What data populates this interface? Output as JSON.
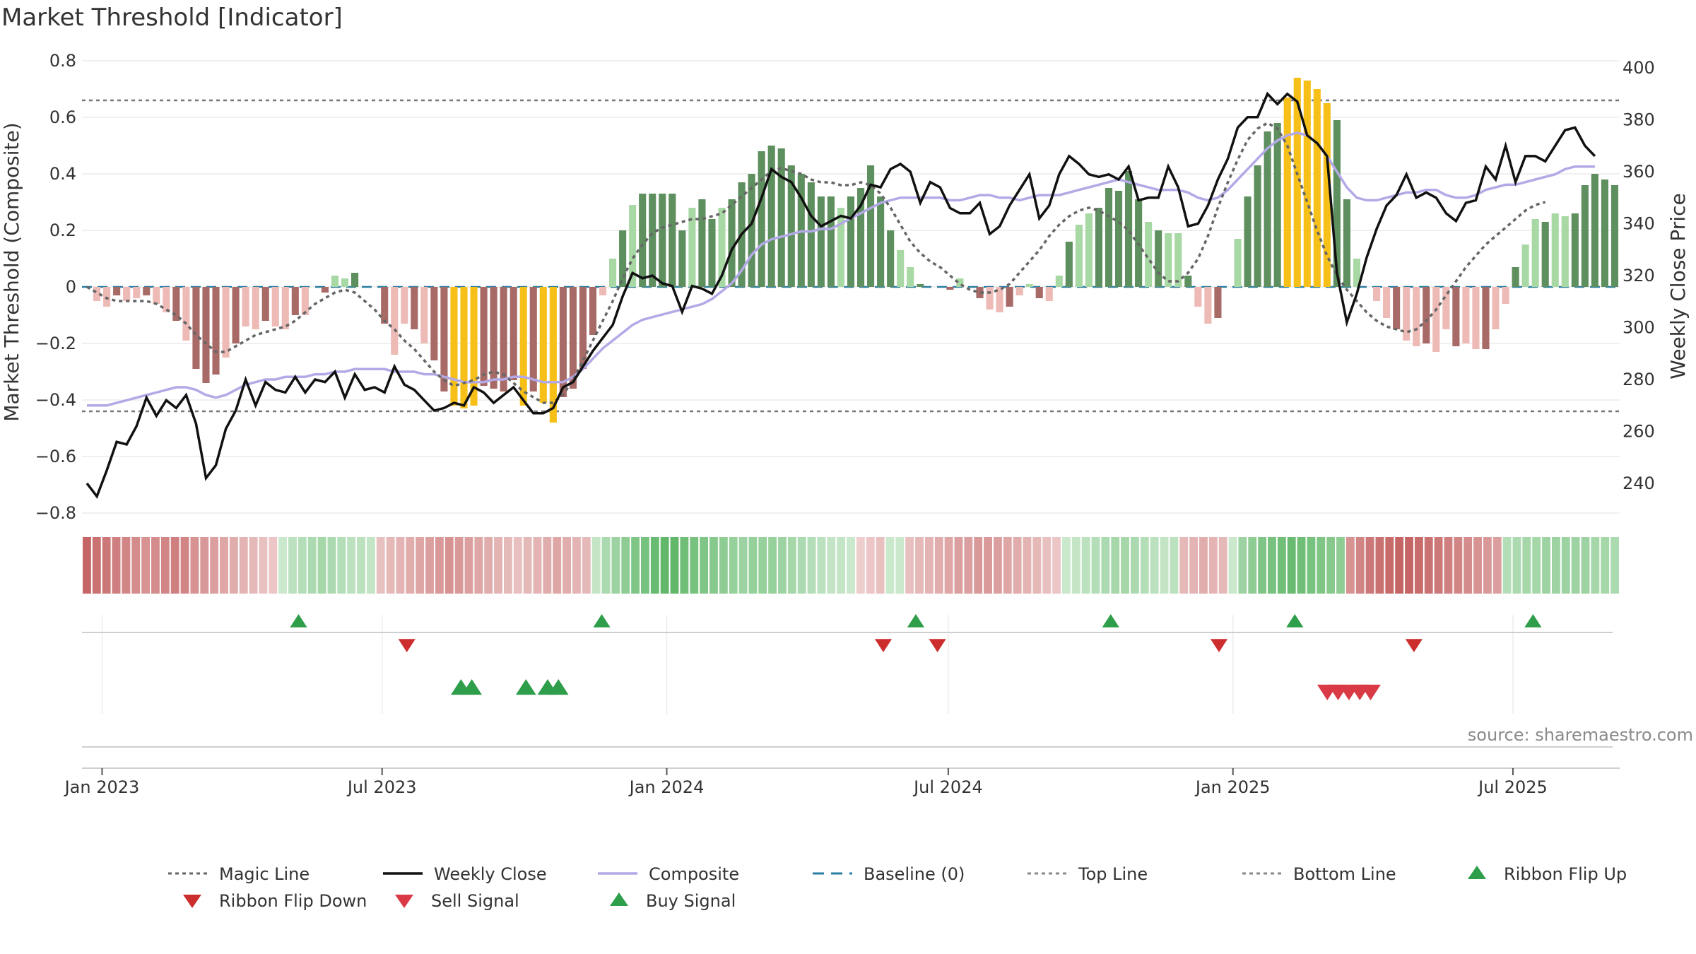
{
  "title": "Market Threshold [Indicator]",
  "source": "source: sharemaestro.com",
  "colors": {
    "close": "#111111",
    "composite": "#b3a9e6",
    "magic": "#666666",
    "baseline": "#2a7da0",
    "threshold": "#777777",
    "buy": "#2e9e4a",
    "sell": "#d93a45",
    "flip_up": "#2e9e4a",
    "flip_down": "#cc2e2e",
    "strong_pos": "#5e8f5e",
    "weak_pos": "#a8d8a4",
    "strong_neg": "#a86a66",
    "weak_neg": "#edbab6",
    "extreme": "#f6c018"
  },
  "legend": [
    {
      "label": "Magic Line",
      "symbol": "dotted",
      "color": "#666666"
    },
    {
      "label": "Weekly Close",
      "symbol": "line",
      "color": "#111111"
    },
    {
      "label": "Composite",
      "symbol": "line",
      "color": "#b3a9e6"
    },
    {
      "label": "Baseline (0)",
      "symbol": "dashed",
      "color": "#2a7da0"
    },
    {
      "label": "Top Line",
      "symbol": "dotted",
      "color": "#888888"
    },
    {
      "label": "Bottom Line",
      "symbol": "dotted",
      "color": "#888888"
    },
    {
      "label": "Ribbon Flip Up",
      "symbol": "tri-up",
      "color": "#2e9e4a"
    },
    {
      "label": "Ribbon Flip Down",
      "symbol": "tri-down",
      "color": "#cc2e2e"
    },
    {
      "label": "Sell Signal",
      "symbol": "tri-down",
      "color": "#d93a45"
    },
    {
      "label": "Buy Signal",
      "symbol": "tri-up",
      "color": "#2e9e4a"
    }
  ],
  "chart_data": {
    "type": "bar",
    "title": "Market Threshold [Indicator]",
    "ylabel": "Market Threshold (Composite)",
    "y2label": "Weekly Close Price",
    "ylim": [
      -0.8,
      0.8
    ],
    "y2lim": [
      230,
      400
    ],
    "y_ticks": [
      0.8,
      0.6,
      0.4,
      0.2,
      0,
      -0.2,
      -0.4,
      -0.6,
      -0.8
    ],
    "y_tick_labels": [
      "0.8",
      "0.6",
      "0.4",
      "0.2",
      "0",
      "−0.2",
      "−0.4",
      "−0.6",
      "−0.8"
    ],
    "y2_ticks": [
      400,
      380,
      360,
      340,
      320,
      300,
      280,
      260,
      240
    ],
    "y2_tick_labels": [
      "400",
      "380",
      "360",
      "340",
      "320",
      "300",
      "280",
      "260",
      "240"
    ],
    "x_range": [
      "2022-12-19",
      "2025-09-08"
    ],
    "x_ticks": [
      "2023-01-01",
      "2023-07-01",
      "2024-01-01",
      "2024-07-01",
      "2025-01-01",
      "2025-07-01"
    ],
    "x_tick_labels": [
      "Jan 2023",
      "Jul 2023",
      "Jan 2024",
      "Jul 2024",
      "Jan 2025",
      "Jul 2025"
    ],
    "top_line": 0.66,
    "bottom_line": -0.44,
    "baseline": 0,
    "grid": true,
    "legend_position": "bottom",
    "series": [
      {
        "name": "Composite",
        "type": "bar+line",
        "start": "2022-12-19",
        "interval_days": 7,
        "values": [
          0,
          -0.05,
          -0.07,
          -0.03,
          -0.05,
          -0.04,
          -0.03,
          -0.06,
          -0.09,
          -0.12,
          -0.19,
          -0.29,
          -0.34,
          -0.31,
          -0.25,
          -0.2,
          -0.14,
          -0.15,
          -0.12,
          -0.14,
          -0.15,
          -0.1,
          -0.1,
          0,
          -0.02,
          0.04,
          0.03,
          0.05,
          0,
          0,
          -0.13,
          -0.24,
          -0.13,
          -0.15,
          -0.2,
          -0.26,
          -0.37,
          -0.42,
          -0.43,
          -0.42,
          -0.35,
          -0.36,
          -0.37,
          -0.33,
          -0.42,
          -0.37,
          -0.41,
          -0.48,
          -0.39,
          -0.36,
          -0.29,
          -0.17,
          -0.03,
          0.1,
          0.2,
          0.29,
          0.33,
          0.33,
          0.33,
          0.33,
          0.2,
          0.28,
          0.31,
          0.24,
          0.28,
          0.31,
          0.37,
          0.4,
          0.48,
          0.5,
          0.49,
          0.43,
          0.4,
          0.37,
          0.32,
          0.32,
          0.28,
          0.32,
          0.35,
          0.43,
          0.32,
          0.2,
          0.13,
          0.07,
          0.01,
          0,
          0,
          -0.01,
          0.03,
          0,
          -0.04,
          -0.08,
          -0.09,
          -0.07,
          -0.03,
          0.01,
          -0.04,
          -0.05,
          0.04,
          0.16,
          0.22,
          0.26,
          0.28,
          0.35,
          0.34,
          0.41,
          0.31,
          0.23,
          0.2,
          0.19,
          0.19,
          0.04,
          -0.07,
          -0.13,
          -0.11,
          0,
          0.17,
          0.32,
          0.43,
          0.55,
          0.58,
          0.67,
          0.74,
          0.73,
          0.7,
          0.65,
          0.59,
          0.31,
          0.1,
          0,
          -0.05,
          -0.11,
          -0.15,
          -0.19,
          -0.21,
          -0.2,
          -0.23,
          -0.15,
          -0.21,
          -0.2,
          -0.22,
          -0.22,
          -0.15,
          -0.06,
          0.07,
          0.15,
          0.24,
          0.23,
          0.26,
          0.25,
          0.26,
          0.36,
          0.4,
          0.38,
          0.36
        ]
      },
      {
        "name": "Weekly Close",
        "start": "2022-12-19",
        "interval_days": 7,
        "values": [
          240,
          235,
          245,
          256,
          255,
          262,
          273,
          266,
          272,
          269,
          274,
          263,
          242,
          247,
          261,
          268,
          280,
          270,
          279,
          276,
          275,
          281,
          275,
          280,
          279,
          283,
          273,
          282,
          276,
          277,
          275,
          285,
          278,
          276,
          272,
          268,
          269,
          271,
          270,
          277,
          275,
          271,
          274,
          277,
          272,
          267,
          267,
          269,
          277,
          279,
          285,
          291,
          296,
          301,
          312,
          321,
          319,
          320,
          317,
          316,
          306,
          316,
          315,
          313,
          320,
          330,
          336,
          340,
          350,
          361,
          358,
          356,
          350,
          343,
          339,
          341,
          343,
          342,
          347,
          355,
          354,
          361,
          363,
          360,
          348,
          356,
          354,
          346,
          344,
          344,
          348,
          336,
          339,
          347,
          353,
          359,
          342,
          347,
          359,
          366,
          363,
          359,
          358,
          359,
          357,
          362,
          349,
          350,
          350,
          362,
          354,
          339,
          340,
          347,
          357,
          365,
          377,
          381,
          381,
          390,
          386,
          390,
          387,
          374,
          371,
          366,
          321,
          302,
          313,
          327,
          338,
          347,
          351,
          359,
          350,
          352,
          350,
          344,
          341,
          348,
          349,
          362,
          357,
          370,
          356,
          366,
          366,
          364,
          370,
          376,
          377,
          370,
          366
        ]
      },
      {
        "name": "Magic Line",
        "start": "2022-12-19",
        "interval_days": 7,
        "values": [
          0,
          -0.02,
          -0.04,
          -0.05,
          -0.05,
          -0.05,
          -0.05,
          -0.06,
          -0.08,
          -0.1,
          -0.13,
          -0.17,
          -0.2,
          -0.23,
          -0.23,
          -0.21,
          -0.19,
          -0.17,
          -0.16,
          -0.15,
          -0.14,
          -0.12,
          -0.09,
          -0.06,
          -0.04,
          -0.02,
          -0.01,
          -0.02,
          -0.05,
          -0.08,
          -0.12,
          -0.15,
          -0.19,
          -0.22,
          -0.26,
          -0.3,
          -0.33,
          -0.35,
          -0.34,
          -0.33,
          -0.31,
          -0.3,
          -0.31,
          -0.34,
          -0.37,
          -0.39,
          -0.41,
          -0.41,
          -0.38,
          -0.33,
          -0.26,
          -0.19,
          -0.12,
          -0.05,
          0.03,
          0.1,
          0.15,
          0.19,
          0.21,
          0.22,
          0.23,
          0.24,
          0.24,
          0.25,
          0.26,
          0.29,
          0.32,
          0.35,
          0.38,
          0.41,
          0.42,
          0.41,
          0.4,
          0.38,
          0.37,
          0.37,
          0.36,
          0.36,
          0.37,
          0.36,
          0.33,
          0.28,
          0.22,
          0.16,
          0.12,
          0.09,
          0.07,
          0.04,
          0.01,
          -0.01,
          -0.02,
          -0.02,
          -0.01,
          0.01,
          0.05,
          0.09,
          0.13,
          0.18,
          0.22,
          0.25,
          0.27,
          0.28,
          0.27,
          0.25,
          0.23,
          0.2,
          0.15,
          0.1,
          0.05,
          0.02,
          0.02,
          0.05,
          0.1,
          0.18,
          0.28,
          0.37,
          0.45,
          0.52,
          0.56,
          0.58,
          0.56,
          0.5,
          0.4,
          0.3,
          0.2,
          0.11,
          0.04,
          -0.01,
          -0.05,
          -0.09,
          -0.12,
          -0.14,
          -0.15,
          -0.16,
          -0.15,
          -0.12,
          -0.08,
          -0.03,
          0.02,
          0.07,
          0.11,
          0.15,
          0.18,
          0.21,
          0.24,
          0.27,
          0.29,
          0.3
        ]
      },
      {
        "name": "Composite Line",
        "start": "2022-12-19",
        "interval_days": 7,
        "values": [
          270,
          270,
          270,
          271,
          272,
          273,
          274,
          275,
          276,
          277,
          277,
          276,
          274,
          273,
          274,
          276,
          278,
          279,
          280,
          280,
          281,
          281,
          281,
          282,
          282,
          283,
          283,
          284,
          284,
          284,
          284,
          283,
          283,
          283,
          282,
          282,
          281,
          280,
          279,
          279,
          279,
          280,
          280,
          281,
          281,
          280,
          279,
          279,
          279,
          281,
          284,
          288,
          292,
          295,
          298,
          301,
          303,
          304,
          305,
          306,
          307,
          308,
          309,
          311,
          314,
          317,
          322,
          328,
          332,
          334,
          335,
          336,
          337,
          337,
          338,
          338,
          340,
          342,
          344,
          346,
          348,
          349,
          350,
          350,
          350,
          350,
          350,
          349,
          349,
          350,
          351,
          351,
          350,
          350,
          349,
          350,
          351,
          351,
          351,
          352,
          353,
          354,
          355,
          356,
          357,
          356,
          355,
          354,
          353,
          353,
          353,
          352,
          350,
          349,
          350,
          353,
          357,
          361,
          365,
          369,
          372,
          374,
          375,
          374,
          371,
          366,
          360,
          354,
          350,
          349,
          349,
          350,
          351,
          352,
          352,
          353,
          353,
          351,
          350,
          350,
          351,
          353,
          354,
          355,
          355,
          356,
          357,
          358,
          359,
          361,
          362,
          362,
          362
        ]
      }
    ],
    "ribbon_shades": [
      -0.95,
      -0.85,
      -0.8,
      -0.75,
      -0.7,
      -0.65,
      -0.6,
      -0.65,
      -0.7,
      -0.75,
      -0.7,
      -0.6,
      -0.55,
      -0.5,
      -0.45,
      -0.4,
      -0.35,
      -0.3,
      -0.25,
      -0.2,
      0.2,
      0.3,
      0.35,
      0.4,
      0.45,
      0.4,
      0.35,
      0.3,
      0.3,
      0.25,
      -0.25,
      -0.3,
      -0.35,
      -0.4,
      -0.45,
      -0.5,
      -0.55,
      -0.6,
      -0.55,
      -0.5,
      -0.45,
      -0.4,
      -0.35,
      -0.3,
      -0.25,
      -0.3,
      -0.35,
      -0.4,
      -0.45,
      -0.4,
      -0.35,
      -0.3,
      0.25,
      0.4,
      0.5,
      0.6,
      0.7,
      0.75,
      0.85,
      0.9,
      0.9,
      0.8,
      0.75,
      0.7,
      0.65,
      0.6,
      0.55,
      0.5,
      0.55,
      0.55,
      0.55,
      0.5,
      0.45,
      0.4,
      0.35,
      0.3,
      0.25,
      0.25,
      0.2,
      -0.15,
      -0.2,
      -0.25,
      0.2,
      0.2,
      -0.25,
      -0.3,
      -0.35,
      -0.4,
      -0.45,
      -0.5,
      -0.5,
      -0.55,
      -0.55,
      -0.5,
      -0.45,
      -0.4,
      -0.35,
      -0.3,
      -0.25,
      -0.2,
      0.2,
      0.25,
      0.3,
      0.35,
      0.4,
      0.45,
      0.45,
      0.4,
      0.35,
      0.3,
      0.25,
      0.3,
      -0.3,
      -0.35,
      -0.4,
      -0.35,
      -0.3,
      0.2,
      0.5,
      0.6,
      0.7,
      0.75,
      0.8,
      0.85,
      0.8,
      0.75,
      0.7,
      0.65,
      0.6,
      -0.6,
      -0.7,
      -0.8,
      -0.85,
      -0.9,
      -0.95,
      -0.95,
      -0.9,
      -0.85,
      -0.8,
      -0.75,
      -0.7,
      -0.65,
      -0.6,
      -0.55,
      -0.5,
      0.35,
      0.4,
      0.45,
      0.45,
      0.5,
      0.5,
      0.5,
      0.5,
      0.5,
      0.45,
      0.45,
      0.4
    ],
    "ribbon_flip_up_dates": [
      "2023-05-08",
      "2023-11-20",
      "2024-06-10",
      "2024-10-14",
      "2025-02-10",
      "2025-07-14"
    ],
    "ribbon_flip_down_dates": [
      "2023-07-17",
      "2024-05-20",
      "2024-06-24",
      "2024-12-23",
      "2025-04-28"
    ],
    "buy_signal_dates": [
      "2023-08-21",
      "2023-08-28",
      "2023-10-02",
      "2023-10-16",
      "2023-10-23"
    ],
    "sell_signal_dates": [
      "2025-03-03",
      "2025-03-10",
      "2025-03-17",
      "2025-03-24",
      "2025-03-31"
    ]
  }
}
